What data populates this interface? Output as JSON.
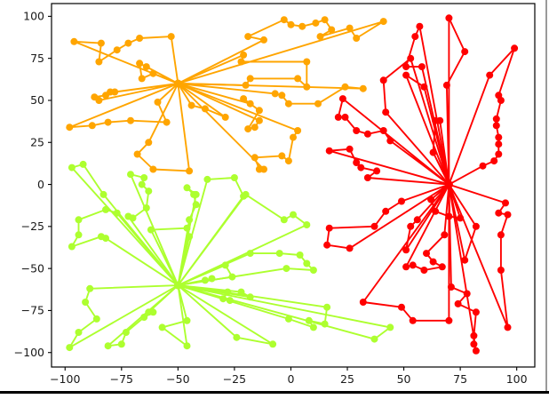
{
  "window": {
    "background": "#ffffff",
    "bottom_bar_color": "#000000",
    "right_edge_color": "#9a9a9a"
  },
  "chart_data": {
    "type": "scatter",
    "subtype": "hub-spoke-routes-network",
    "title": "",
    "xlabel": "",
    "ylabel": "",
    "grid": false,
    "legend": null,
    "xlim": [
      -106,
      108
    ],
    "ylim": [
      -108.6,
      107.6
    ],
    "xticks": {
      "values": [
        -100,
        -75,
        -50,
        -25,
        0,
        25,
        50,
        75,
        100
      ],
      "labels": [
        "−100",
        "−75",
        "−50",
        "−25",
        "0",
        "25",
        "50",
        "75",
        "100"
      ]
    },
    "yticks": {
      "values": [
        -100,
        -75,
        -50,
        -25,
        0,
        25,
        50,
        75,
        100
      ],
      "labels": [
        "−100",
        "−75",
        "−50",
        "−25",
        "0",
        "25",
        "50",
        "75",
        "100"
      ]
    },
    "spine_color": "#000000",
    "tick_label_color": "#1a1a1a",
    "marker_radius": 4,
    "line_width": 1.9,
    "clusters": [
      {
        "name": "orange-cluster",
        "color": "#FFA500",
        "hub": [
          -50,
          60
        ],
        "routes": [
          [
            [
              -61,
              66
            ],
            [
              -66,
              63
            ],
            [
              -67,
              72
            ],
            [
              -64,
              70
            ]
          ],
          [
            [
              -53,
              88
            ],
            [
              -67,
              87
            ],
            [
              -72,
              84
            ],
            [
              -77,
              80
            ],
            [
              -85,
              73
            ],
            [
              -84,
              84
            ],
            [
              -96,
              85
            ]
          ],
          [
            [
              -78,
              55
            ],
            [
              -80,
              55
            ],
            [
              -82,
              53
            ],
            [
              -87,
              52
            ],
            [
              -85,
              50
            ]
          ],
          [
            [
              -59,
              49
            ],
            [
              -55,
              37
            ],
            [
              -71,
              38
            ],
            [
              -81,
              37
            ],
            [
              -88,
              35
            ],
            [
              -98,
              34
            ]
          ],
          [
            [
              -63,
              25
            ],
            [
              -68,
              18
            ],
            [
              -61,
              9
            ],
            [
              -45,
              8
            ]
          ],
          [
            [
              -18,
              48
            ],
            [
              -21,
              51
            ],
            [
              -14,
              44
            ],
            [
              -19,
              33
            ],
            [
              -16,
              34
            ],
            [
              -14,
              38
            ]
          ],
          [
            [
              3,
              32
            ],
            [
              1,
              28
            ],
            [
              -1,
              14
            ],
            [
              -4,
              17
            ],
            [
              -16,
              16
            ],
            [
              -14,
              9
            ],
            [
              -12,
              9
            ]
          ],
          [
            [
              -7,
              54
            ],
            [
              -4,
              53
            ],
            [
              -1,
              48
            ],
            [
              12,
              48
            ],
            [
              24,
              58
            ],
            [
              32,
              57
            ]
          ],
          [
            [
              -20,
              59
            ],
            [
              -18,
              63
            ],
            [
              3,
              63
            ],
            [
              7,
              58
            ],
            [
              7,
              73
            ],
            [
              -22,
              73
            ],
            [
              -21,
              77
            ]
          ],
          [
            [
              -12,
              86
            ],
            [
              -19,
              88
            ],
            [
              -3,
              98
            ],
            [
              0,
              95
            ],
            [
              5,
              94
            ],
            [
              11,
              96
            ],
            [
              15,
              98
            ],
            [
              18,
              92
            ],
            [
              13,
              88
            ],
            [
              26,
              93
            ],
            [
              29,
              87
            ],
            [
              41,
              97
            ]
          ],
          [
            [
              -44,
              47
            ],
            [
              -38,
              45
            ],
            [
              -29,
              40
            ]
          ]
        ]
      },
      {
        "name": "green-cluster",
        "color": "#ADFF2F",
        "hub": [
          -50,
          -60
        ],
        "routes": [
          [
            [
              -77,
              -17
            ],
            [
              -82,
              -15
            ],
            [
              -94,
              -21
            ],
            [
              -94,
              -30
            ],
            [
              -97,
              -37
            ],
            [
              -84,
              -31
            ],
            [
              -82,
              -32
            ]
          ],
          [
            [
              -83,
              -6
            ],
            [
              -92,
              12
            ],
            [
              -97,
              10
            ]
          ],
          [
            [
              -72,
              -19
            ],
            [
              -70,
              -20
            ],
            [
              -64,
              -14
            ],
            [
              -63,
              -4
            ],
            [
              -66,
              0
            ],
            [
              -65,
              4
            ],
            [
              -71,
              6
            ]
          ],
          [
            [
              -62,
              -27
            ],
            [
              -46,
              -26
            ],
            [
              -45,
              -31
            ]
          ],
          [
            [
              -45,
              -21
            ],
            [
              -42,
              -12
            ],
            [
              -43,
              -6
            ],
            [
              -46,
              -2
            ],
            [
              -42,
              -6
            ]
          ],
          [
            [
              -37,
              3
            ],
            [
              -25,
              4
            ],
            [
              -21,
              -7
            ]
          ],
          [
            [
              -20,
              -6
            ],
            [
              -3,
              -21
            ],
            [
              1,
              -18
            ],
            [
              7,
              -24
            ]
          ],
          [
            [
              -18,
              -41
            ],
            [
              -5,
              -41
            ],
            [
              4,
              -42
            ],
            [
              7,
              -47
            ],
            [
              10,
              -51
            ],
            [
              -2,
              -50
            ]
          ],
          [
            [
              -29,
              -48
            ],
            [
              -26,
              -55
            ]
          ],
          [
            [
              -35,
              -56
            ],
            [
              -38,
              -57
            ]
          ],
          [
            [
              -28,
              -64
            ],
            [
              -30,
              -68
            ],
            [
              -27,
              -69
            ]
          ],
          [
            [
              -22,
              -64
            ],
            [
              -18,
              -67
            ]
          ],
          [
            [
              16,
              -73
            ],
            [
              15,
              -83
            ],
            [
              8,
              -81
            ],
            [
              10,
              -85
            ],
            [
              -1,
              -80
            ]
          ],
          [
            [
              44,
              -85
            ],
            [
              37,
              -92
            ]
          ],
          [
            [
              -46,
              -81
            ],
            [
              -57,
              -85
            ],
            [
              -46,
              -96
            ]
          ],
          [
            [
              -24,
              -91
            ],
            [
              -8,
              -95
            ]
          ],
          [
            [
              -63,
              -76
            ],
            [
              -61,
              -76
            ],
            [
              -65,
              -79
            ],
            [
              -73,
              -88
            ],
            [
              -75,
              -95
            ],
            [
              -81,
              -96
            ]
          ],
          [
            [
              -89,
              -62
            ],
            [
              -91,
              -70
            ],
            [
              -86,
              -80
            ],
            [
              -94,
              -88
            ],
            [
              -98,
              -97
            ]
          ]
        ]
      },
      {
        "name": "red-cluster",
        "color": "#FF0000",
        "hub": [
          70,
          0
        ],
        "routes": [
          [
            [
              69,
              59
            ],
            [
              77,
              79
            ],
            [
              70,
              99
            ]
          ],
          [
            [
              58,
              70
            ],
            [
              51,
              70
            ],
            [
              55,
              88
            ],
            [
              57,
              94
            ]
          ],
          [
            [
              51,
              65
            ],
            [
              59,
              58
            ]
          ],
          [
            [
              88,
              65
            ],
            [
              99,
              81
            ],
            [
              92,
              53
            ],
            [
              93,
              50
            ],
            [
              91,
              39
            ],
            [
              91,
              35
            ],
            [
              92,
              28
            ],
            [
              92,
              24
            ],
            [
              92,
              18
            ],
            [
              90,
              14
            ],
            [
              85,
              11
            ]
          ],
          [
            [
              63,
              19
            ],
            [
              64,
              38
            ],
            [
              66,
              38
            ]
          ],
          [
            [
              34,
              4
            ],
            [
              38,
              8
            ],
            [
              31,
              10
            ],
            [
              29,
              13
            ],
            [
              26,
              21
            ],
            [
              17,
              20
            ]
          ],
          [
            [
              44,
              26
            ],
            [
              41,
              32
            ],
            [
              34,
              30
            ],
            [
              29,
              32
            ],
            [
              24,
              40
            ],
            [
              21,
              40
            ],
            [
              23,
              51
            ]
          ],
          [
            [
              42,
              43
            ],
            [
              41,
              62
            ],
            [
              53,
              75
            ]
          ],
          [
            [
              49,
              -10
            ],
            [
              42,
              -16
            ],
            [
              37,
              -25
            ],
            [
              17,
              -26
            ],
            [
              16,
              -36
            ],
            [
              26,
              -38
            ]
          ],
          [
            [
              62,
              -9
            ],
            [
              64,
              -16
            ],
            [
              70,
              -19
            ],
            [
              75,
              -20
            ]
          ],
          [
            [
              56,
              -21
            ],
            [
              53,
              -25
            ],
            [
              51,
              -39
            ]
          ],
          [
            [
              68,
              -30
            ],
            [
              60,
              -41
            ],
            [
              63,
              -46
            ],
            [
              67,
              -49
            ],
            [
              59,
              -51
            ],
            [
              54,
              -48
            ],
            [
              51,
              -49
            ]
          ],
          [
            [
              95,
              -11
            ],
            [
              92,
              -17
            ],
            [
              96,
              -18
            ],
            [
              93,
              -30
            ],
            [
              93,
              -51
            ],
            [
              96,
              -85
            ]
          ],
          [
            [
              82,
              -25
            ],
            [
              77,
              -45
            ]
          ],
          [
            [
              71,
              -61
            ],
            [
              78,
              -65
            ],
            [
              74,
              -71
            ],
            [
              82,
              -76
            ],
            [
              81,
              -90
            ],
            [
              81,
              -95
            ],
            [
              82,
              -99
            ]
          ],
          [
            [
              70,
              -81
            ],
            [
              54,
              -81
            ],
            [
              49,
              -73
            ],
            [
              32,
              -70
            ]
          ]
        ]
      }
    ]
  }
}
